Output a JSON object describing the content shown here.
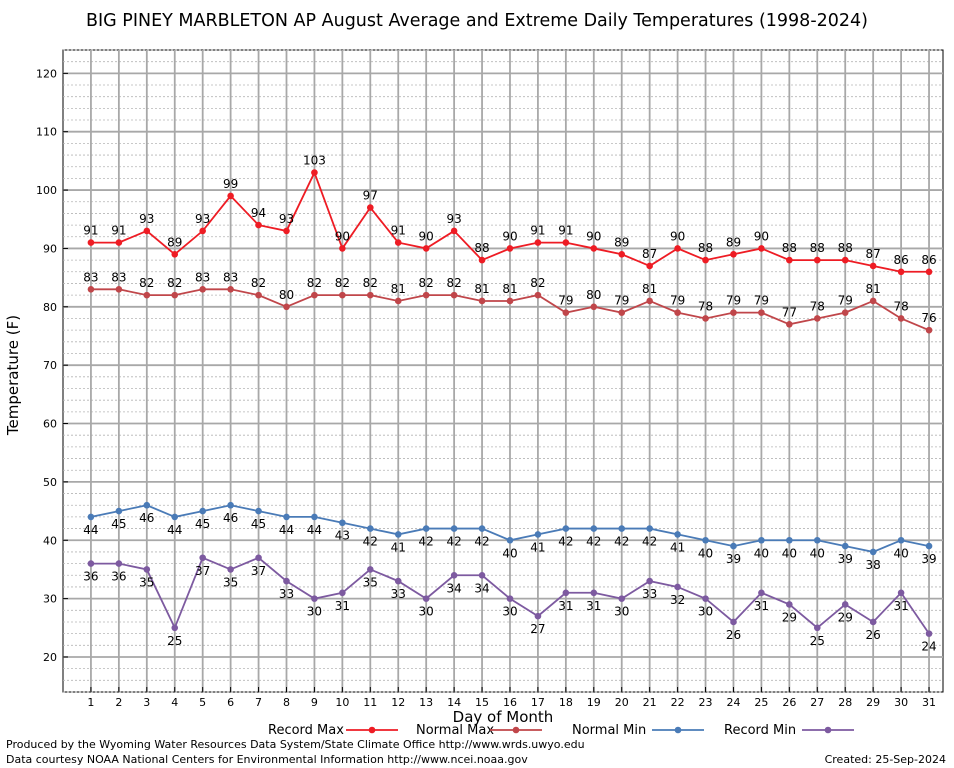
{
  "title": "BIG PINEY MARBLETON AP August Average and Extreme Daily Temperatures (1998-2024)",
  "footer": {
    "produced_by": "Produced by the Wyoming Water Resources Data System/State Climate Office http://www.wrds.uwyo.edu",
    "courtesy": "Data courtesy NOAA National Centers for Environmental Information http://www.ncei.noaa.gov",
    "created": "Created:  25-Sep-2024"
  },
  "chart_data": {
    "type": "line",
    "title": "BIG PINEY MARBLETON AP August Average and Extreme Daily Temperatures (1998-2024)",
    "xlabel": "Day of Month",
    "ylabel": "Temperature (F)",
    "x": [
      1,
      2,
      3,
      4,
      5,
      6,
      7,
      8,
      9,
      10,
      11,
      12,
      13,
      14,
      15,
      16,
      17,
      18,
      19,
      20,
      21,
      22,
      23,
      24,
      25,
      26,
      27,
      28,
      29,
      30,
      31
    ],
    "xlim": [
      0,
      31.5
    ],
    "ylim": [
      14,
      124
    ],
    "yticks": [
      20,
      30,
      40,
      50,
      60,
      70,
      80,
      90,
      100,
      110,
      120
    ],
    "grid": true,
    "legend_position": "bottom",
    "series": [
      {
        "name": "Record Max",
        "color": "#ee1c24",
        "values": [
          91,
          91,
          93,
          89,
          93,
          99,
          94,
          93,
          103,
          90,
          97,
          91,
          90,
          93,
          88,
          90,
          91,
          91,
          90,
          89,
          87,
          90,
          88,
          89,
          90,
          88,
          88,
          88,
          87,
          86,
          86
        ],
        "label_pos": "above"
      },
      {
        "name": "Normal Max",
        "color": "#c0464a",
        "values": [
          83,
          83,
          82,
          82,
          83,
          83,
          82,
          80,
          82,
          82,
          82,
          81,
          82,
          82,
          81,
          81,
          82,
          79,
          80,
          79,
          81,
          79,
          78,
          79,
          79,
          77,
          78,
          79,
          81,
          78,
          76
        ],
        "label_pos": "above"
      },
      {
        "name": "Normal Min",
        "color": "#4a7bb7",
        "values": [
          44,
          45,
          46,
          44,
          45,
          46,
          45,
          44,
          44,
          43,
          42,
          41,
          42,
          42,
          42,
          40,
          41,
          42,
          42,
          42,
          42,
          41,
          40,
          39,
          40,
          40,
          40,
          39,
          38,
          40,
          39
        ],
        "label_pos": "below"
      },
      {
        "name": "Record Min",
        "color": "#7d5aa0",
        "values": [
          36,
          36,
          35,
          25,
          37,
          35,
          37,
          33,
          30,
          31,
          35,
          33,
          30,
          34,
          34,
          30,
          27,
          31,
          31,
          30,
          33,
          32,
          30,
          26,
          31,
          29,
          25,
          29,
          26,
          31,
          24
        ],
        "label_pos": "below"
      }
    ]
  }
}
